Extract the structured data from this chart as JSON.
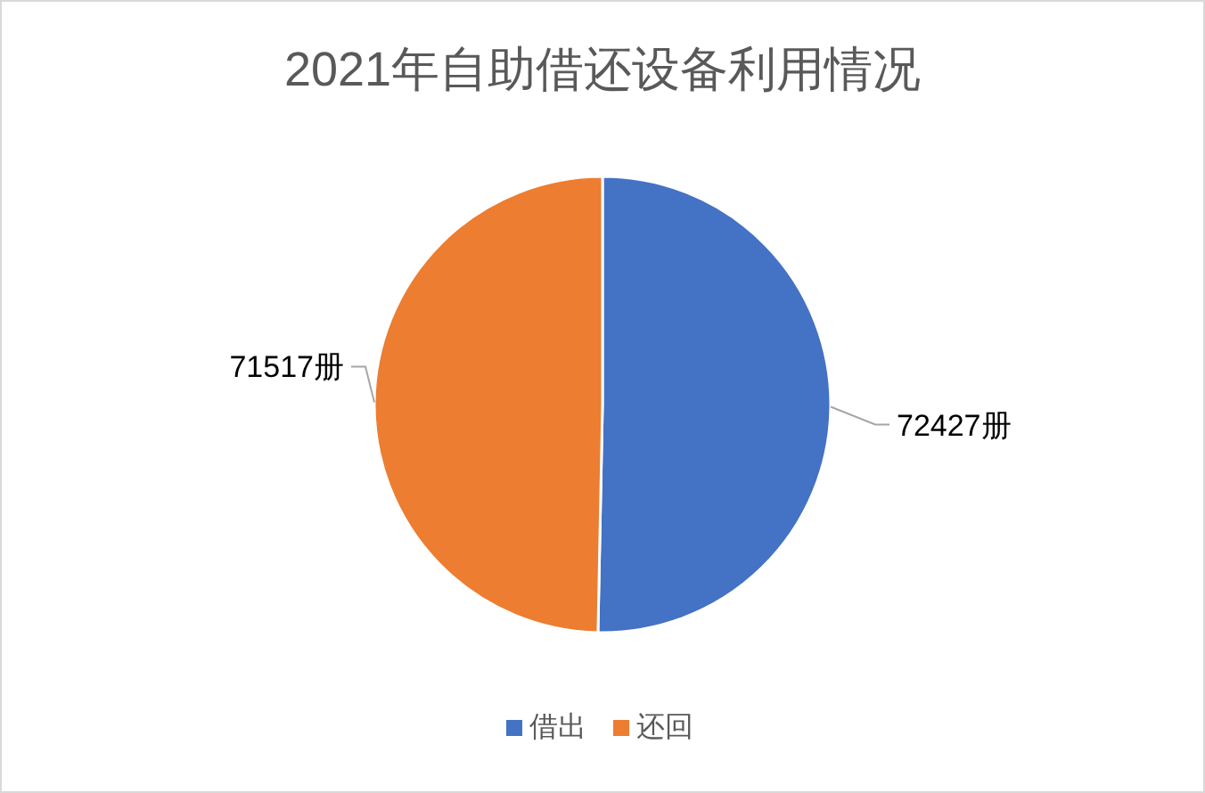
{
  "chart_data": {
    "type": "pie",
    "title": "2021年自助借还设备利用情况",
    "categories": [
      "借出",
      "还回"
    ],
    "values": [
      72427,
      71517
    ],
    "colors": [
      "#4472c4",
      "#ed7d31"
    ],
    "value_labels": [
      "72427册",
      "71517册"
    ],
    "legend": "bottom"
  }
}
